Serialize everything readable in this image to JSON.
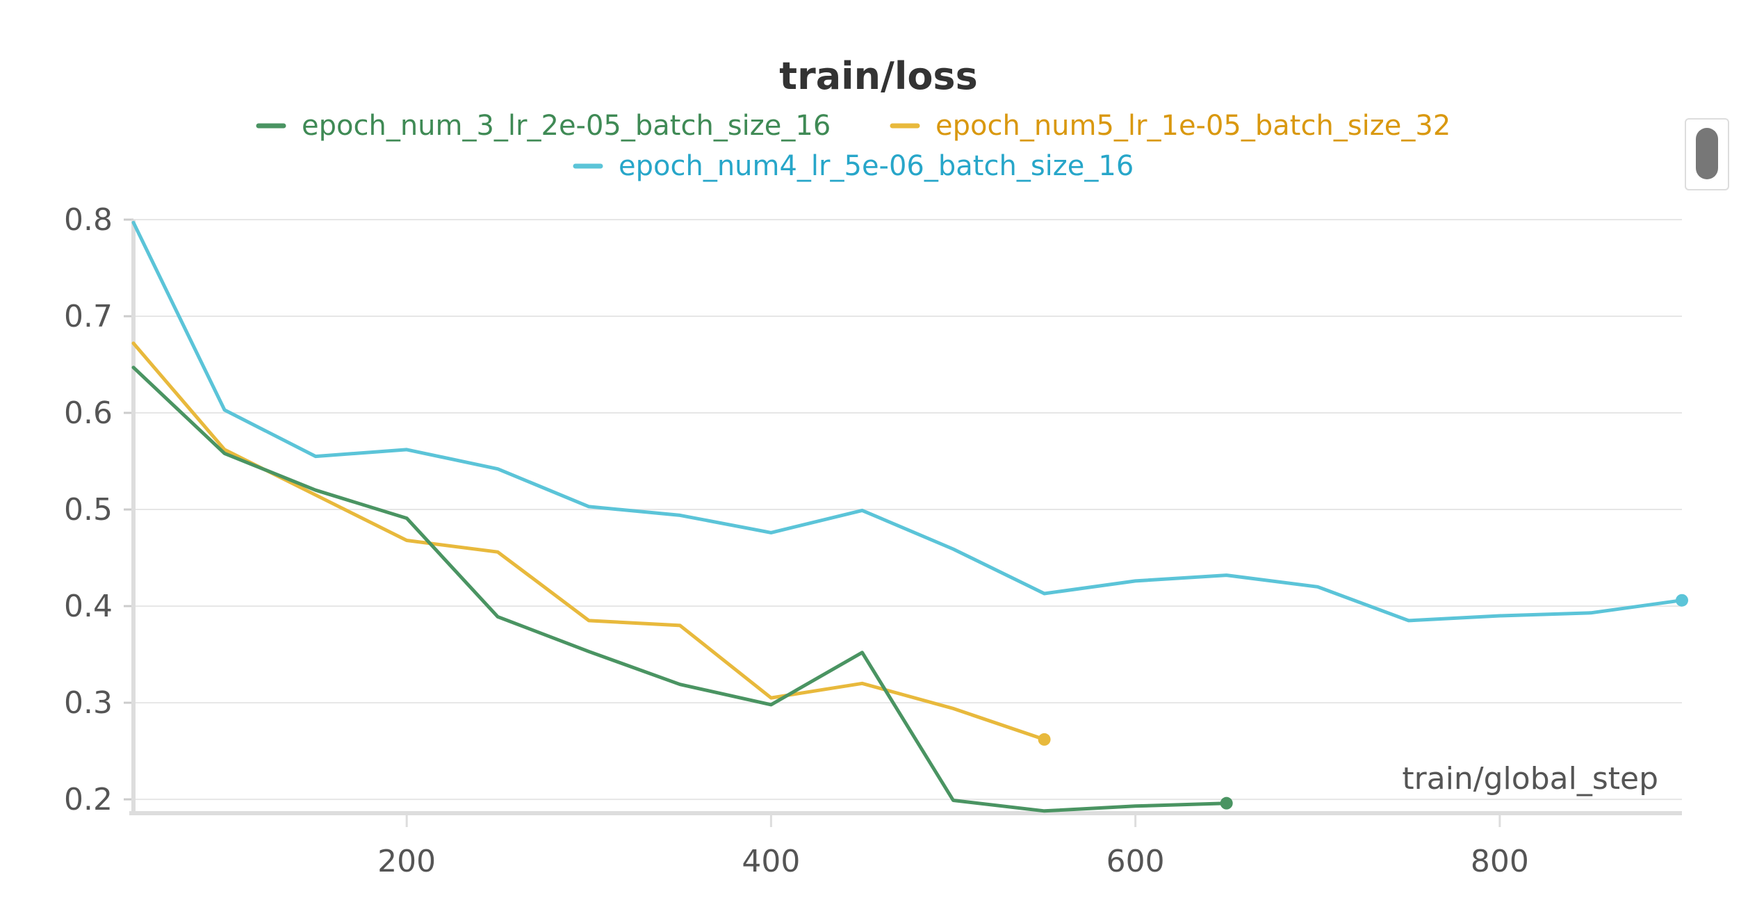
{
  "chart_data": {
    "type": "line",
    "title": "train/loss",
    "xlabel": "train/global_step",
    "ylabel": "",
    "xlim": [
      50,
      900
    ],
    "ylim": [
      0.19,
      0.8
    ],
    "xticks": [
      200,
      400,
      600,
      800
    ],
    "yticks": [
      0.2,
      0.3,
      0.4,
      0.5,
      0.6,
      0.7,
      0.8
    ],
    "grid": "horizontal",
    "legend_position": "top",
    "series": [
      {
        "name": "epoch_num_3_lr_2e-05_batch_size_16",
        "color": "#4a9462",
        "text_color": "#3f8a55",
        "x": [
          50,
          100,
          150,
          200,
          250,
          300,
          350,
          400,
          450,
          500,
          550,
          600,
          650
        ],
        "y": [
          0.647,
          0.558,
          0.52,
          0.491,
          0.389,
          0.353,
          0.319,
          0.298,
          0.352,
          0.199,
          0.188,
          0.193,
          0.196
        ]
      },
      {
        "name": "epoch_num5_lr_1e-05_batch_size_32",
        "color": "#e8b93c",
        "text_color": "#d9980f",
        "x": [
          50,
          100,
          150,
          200,
          250,
          300,
          350,
          400,
          450,
          500,
          550
        ],
        "y": [
          0.672,
          0.562,
          0.515,
          0.468,
          0.456,
          0.385,
          0.38,
          0.305,
          0.32,
          0.294,
          0.262
        ]
      },
      {
        "name": "epoch_num4_lr_5e-06_batch_size_16",
        "color": "#5bc4d8",
        "text_color": "#27a6c9",
        "x": [
          50,
          100,
          150,
          200,
          250,
          300,
          350,
          400,
          450,
          500,
          550,
          600,
          650,
          700,
          750,
          800,
          850,
          900
        ],
        "y": [
          0.797,
          0.603,
          0.555,
          0.562,
          0.542,
          0.503,
          0.494,
          0.476,
          0.499,
          0.459,
          0.413,
          0.426,
          0.432,
          0.42,
          0.385,
          0.39,
          0.393,
          0.406
        ]
      }
    ]
  }
}
